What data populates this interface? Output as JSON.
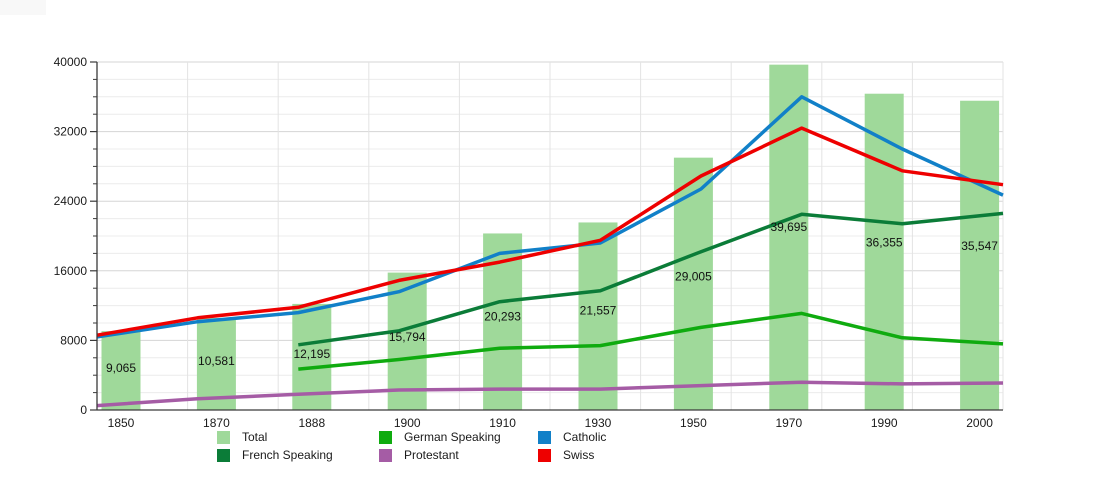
{
  "chart_data": {
    "type": "combo",
    "title": "",
    "categories": [
      "1850",
      "1870",
      "1888",
      "1900",
      "1910",
      "1930",
      "1950",
      "1970",
      "1990",
      "2000"
    ],
    "ylim": [
      0,
      40000
    ],
    "y_major_ticks": [
      "0",
      "8000",
      "16000",
      "24000",
      "32000",
      "40000"
    ],
    "y_minor_step": 2000,
    "grid": "horizontal major+minor gridlines, faint vertical category lines",
    "legend_position": "bottom",
    "bar_series": {
      "name": "Total",
      "color": "#9fd99a",
      "values": [
        9065,
        10581,
        12195,
        15794,
        20293,
        21557,
        29005,
        39695,
        36355,
        35547
      ],
      "labels": [
        "9,065",
        "10,581",
        "12,195",
        "15,794",
        "20,293",
        "21,557",
        "29,005",
        "39,695",
        "36,355",
        "35,547"
      ]
    },
    "line_series": [
      {
        "name": "Protestant",
        "color": "#a55ca5",
        "values": [
          500,
          1300,
          1800,
          2300,
          2400,
          2400,
          2800,
          3200,
          3000,
          3100
        ]
      },
      {
        "name": "German Speaking",
        "color": "#0fab0f",
        "values": [
          null,
          null,
          4700,
          5800,
          7100,
          7400,
          9500,
          11100,
          8300,
          7600
        ]
      },
      {
        "name": "French Speaking",
        "color": "#0b7c38",
        "values": [
          null,
          null,
          7500,
          9100,
          12450,
          13700,
          18200,
          22500,
          21400,
          22600
        ]
      },
      {
        "name": "Catholic",
        "color": "#1180c8",
        "values": [
          8400,
          10150,
          11200,
          13600,
          18000,
          19200,
          25400,
          36000,
          30000,
          24700
        ]
      },
      {
        "name": "Swiss",
        "color": "#ee0000",
        "values": [
          8600,
          10600,
          11800,
          14900,
          17000,
          19500,
          26900,
          32400,
          27500,
          25900
        ]
      }
    ],
    "legend": {
      "rows": [
        [
          {
            "label": "Total",
            "color": "#9fd99a"
          },
          {
            "label": "German Speaking",
            "color": "#0fab0f"
          },
          {
            "label": "Catholic",
            "color": "#1180c8"
          }
        ],
        [
          {
            "label": "French Speaking",
            "color": "#0b7c38"
          },
          {
            "label": "Protestant",
            "color": "#a55ca5"
          },
          {
            "label": "Swiss",
            "color": "#ee0000"
          }
        ]
      ]
    }
  }
}
